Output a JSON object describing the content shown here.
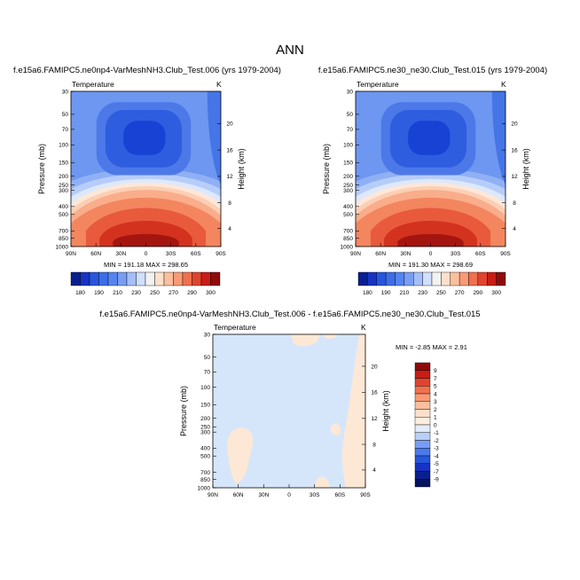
{
  "figure": {
    "title": "ANN"
  },
  "chart_data": [
    {
      "type": "heatmap",
      "title": "f.e15a6.FAMIPC5.ne0np4-VarMeshNH3.Club_Test.006 (yrs 1979-2004)",
      "variable": "Temperature",
      "units": "K",
      "xlabel": "",
      "ylabel": "Pressure (mb)",
      "y2label": "Height (km)",
      "x_ticks": [
        "90N",
        "60N",
        "30N",
        "0",
        "30S",
        "60S",
        "90S"
      ],
      "y_ticks": [
        "30",
        "50",
        "70",
        "100",
        "150",
        "200",
        "250",
        "300",
        "400",
        "500",
        "700",
        "850",
        "1000"
      ],
      "y2_ticks": [
        "4",
        "8",
        "12",
        "16",
        "20"
      ],
      "min_label": "MIN = 191.18",
      "max_label": "MAX = 298.65",
      "colorbar_ticks": [
        "180",
        "190",
        "210",
        "230",
        "250",
        "270",
        "290",
        "300"
      ],
      "colorbar_colors": [
        "#0a1f8f",
        "#1733c4",
        "#2755dd",
        "#3b6ee8",
        "#5584ef",
        "#789ef3",
        "#a4bff8",
        "#cfdffc",
        "#f2f2f2",
        "#fde0cc",
        "#fcbf9e",
        "#f99a75",
        "#f1704e",
        "#e0442e",
        "#c81d17",
        "#8f0b0b"
      ]
    },
    {
      "type": "heatmap",
      "title": "f.e15a6.FAMIPC5.ne30_ne30.Club_Test.015 (yrs 1979-2004)",
      "variable": "Temperature",
      "units": "K",
      "xlabel": "",
      "ylabel": "Pressure (mb)",
      "y2label": "Height (km)",
      "x_ticks": [
        "90N",
        "60N",
        "30N",
        "0",
        "30S",
        "60S",
        "90S"
      ],
      "y_ticks": [
        "30",
        "50",
        "70",
        "100",
        "150",
        "200",
        "250",
        "300",
        "400",
        "500",
        "700",
        "850",
        "1000"
      ],
      "y2_ticks": [
        "4",
        "8",
        "12",
        "16",
        "20"
      ],
      "min_label": "MIN = 191.30",
      "max_label": "MAX = 298.69",
      "colorbar_ticks": [
        "180",
        "190",
        "210",
        "230",
        "250",
        "270",
        "290",
        "300"
      ],
      "colorbar_colors": [
        "#0a1f8f",
        "#1733c4",
        "#2755dd",
        "#3b6ee8",
        "#5584ef",
        "#789ef3",
        "#a4bff8",
        "#cfdffc",
        "#f2f2f2",
        "#fde0cc",
        "#fcbf9e",
        "#f99a75",
        "#f1704e",
        "#e0442e",
        "#c81d17",
        "#8f0b0b"
      ]
    },
    {
      "type": "heatmap",
      "title": "f.e15a6.FAMIPC5.ne0np4-VarMeshNH3.Club_Test.006 - f.e15a6.FAMIPC5.ne30_ne30.Club_Test.015",
      "variable": "Temperature",
      "units": "K",
      "xlabel": "",
      "ylabel": "Pressure (mb)",
      "y2label": "Height (km)",
      "x_ticks": [
        "90N",
        "60N",
        "30N",
        "0",
        "30S",
        "60S",
        "90S"
      ],
      "y_ticks": [
        "30",
        "50",
        "70",
        "100",
        "150",
        "200",
        "250",
        "300",
        "400",
        "500",
        "700",
        "850",
        "1000"
      ],
      "y2_ticks": [
        "4",
        "8",
        "12",
        "16",
        "20"
      ],
      "min_label": "MIN = -2.85",
      "max_label": "MAX = 2.91",
      "colorbar_ticks": [
        "9",
        "7",
        "5",
        "4",
        "3",
        "2",
        "1",
        "0",
        "-1",
        "-2",
        "-3",
        "-4",
        "-5",
        "-7",
        "-9"
      ],
      "colorbar_colors": [
        "#8f0b0b",
        "#c81d17",
        "#e0442e",
        "#f1704e",
        "#f99a75",
        "#fcbf9e",
        "#fde0cc",
        "#fdeee0",
        "#e2ecfb",
        "#b9cff7",
        "#789ef3",
        "#4a79ea",
        "#2755dd",
        "#1733c4",
        "#0a1f8f",
        "#06125e"
      ]
    }
  ]
}
